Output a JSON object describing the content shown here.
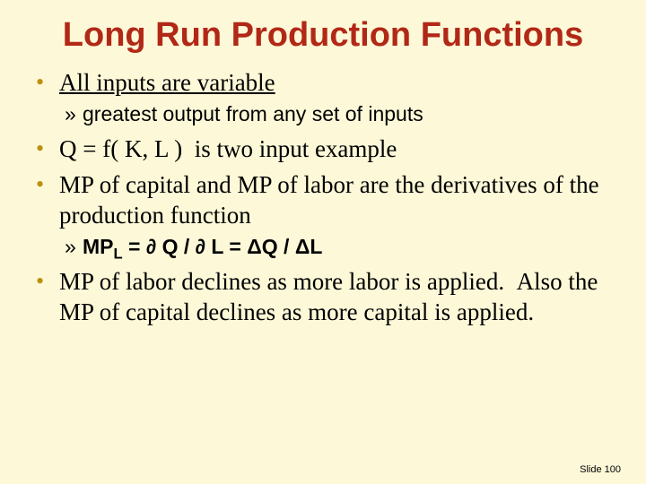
{
  "colors": {
    "background": "#fdf9d8",
    "title": "#b22817",
    "body": "#000000",
    "bullet": "#bd9010"
  },
  "title": "Long Run Production Functions",
  "items": [
    {
      "type": "b1",
      "html": "<span class='underline'>All inputs are variable</span>"
    },
    {
      "type": "b2",
      "html": "greatest output from any set of inputs"
    },
    {
      "type": "b1",
      "html": "Q = f( K, L )&nbsp;&nbsp;is two input example"
    },
    {
      "type": "b1",
      "html": "MP of capital and MP of labor are the derivatives of the production function"
    },
    {
      "type": "b2",
      "html": "<b>MP<span class='sub'>L</span> = ∂ Q / ∂ L = ΔQ / ΔL</b>"
    },
    {
      "type": "b1",
      "html": "MP of labor declines as more labor is applied.&nbsp;&nbsp;Also the MP of capital declines as more capital is applied."
    }
  ],
  "footer": "Slide 100",
  "bullet_glyph": "•",
  "sub_glyph": "»"
}
